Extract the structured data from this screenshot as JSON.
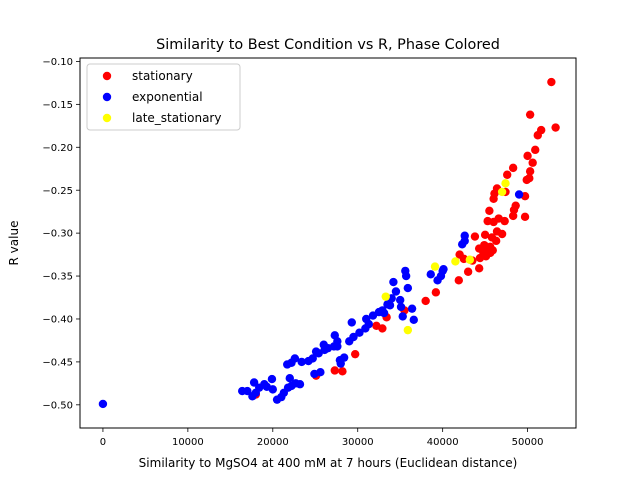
{
  "chart_data": {
    "type": "scatter",
    "title": "Similarity to Best Condition vs R, Phase Colored",
    "xlabel": "Similarity to MgSO4 at 400 mM at 7 hours (Euclidean distance)",
    "ylabel": "R value",
    "xlim": [
      -2700,
      55700
    ],
    "ylim": [
      -0.527,
      -0.096
    ],
    "x_ticks": [
      0,
      10000,
      20000,
      30000,
      40000,
      50000
    ],
    "x_tick_labels": [
      "0",
      "10000",
      "20000",
      "30000",
      "40000",
      "50000"
    ],
    "y_ticks": [
      -0.5,
      -0.45,
      -0.4,
      -0.35,
      -0.3,
      -0.25,
      -0.2,
      -0.15,
      -0.1
    ],
    "y_tick_labels": [
      "−0.50",
      "−0.45",
      "−0.40",
      "−0.35",
      "−0.30",
      "−0.25",
      "−0.20",
      "−0.15",
      "−0.10"
    ],
    "grid": false,
    "legend_position": "top-left",
    "series": [
      {
        "name": "stationary",
        "color": "#ff0000",
        "points": [
          [
            52800,
            -0.124
          ],
          [
            50300,
            -0.162
          ],
          [
            51600,
            -0.18
          ],
          [
            51200,
            -0.186
          ],
          [
            53300,
            -0.177
          ],
          [
            50900,
            -0.203
          ],
          [
            50000,
            -0.21
          ],
          [
            50600,
            -0.218
          ],
          [
            50300,
            -0.228
          ],
          [
            50200,
            -0.236
          ],
          [
            49900,
            -0.238
          ],
          [
            48300,
            -0.224
          ],
          [
            47600,
            -0.232
          ],
          [
            46400,
            -0.248
          ],
          [
            46100,
            -0.254
          ],
          [
            46000,
            -0.26
          ],
          [
            49700,
            -0.257
          ],
          [
            47400,
            -0.252
          ],
          [
            48600,
            -0.268
          ],
          [
            48400,
            -0.273
          ],
          [
            48300,
            -0.28
          ],
          [
            49700,
            -0.281
          ],
          [
            46600,
            -0.283
          ],
          [
            47300,
            -0.286
          ],
          [
            45300,
            -0.286
          ],
          [
            46000,
            -0.287
          ],
          [
            45500,
            -0.274
          ],
          [
            46400,
            -0.298
          ],
          [
            47000,
            -0.301
          ],
          [
            45800,
            -0.305
          ],
          [
            46300,
            -0.309
          ],
          [
            45000,
            -0.302
          ],
          [
            43800,
            -0.304
          ],
          [
            44900,
            -0.314
          ],
          [
            45600,
            -0.316
          ],
          [
            45900,
            -0.32
          ],
          [
            45300,
            -0.32
          ],
          [
            44300,
            -0.318
          ],
          [
            44800,
            -0.323
          ],
          [
            45600,
            -0.323
          ],
          [
            45100,
            -0.327
          ],
          [
            44400,
            -0.329
          ],
          [
            43500,
            -0.332
          ],
          [
            42500,
            -0.33
          ],
          [
            42000,
            -0.325
          ],
          [
            43000,
            -0.345
          ],
          [
            44300,
            -0.341
          ],
          [
            41900,
            -0.355
          ],
          [
            39200,
            -0.369
          ],
          [
            38000,
            -0.379
          ],
          [
            35500,
            -0.39
          ],
          [
            33400,
            -0.398
          ],
          [
            32200,
            -0.408
          ],
          [
            32900,
            -0.411
          ],
          [
            29700,
            -0.441
          ],
          [
            27300,
            -0.46
          ],
          [
            28200,
            -0.461
          ],
          [
            25100,
            -0.466
          ],
          [
            18000,
            -0.488
          ]
        ]
      },
      {
        "name": "exponential",
        "color": "#0000ff",
        "points": [
          [
            0,
            -0.499
          ],
          [
            16400,
            -0.484
          ],
          [
            17000,
            -0.484
          ],
          [
            17600,
            -0.49
          ],
          [
            18000,
            -0.486
          ],
          [
            18400,
            -0.48
          ],
          [
            17800,
            -0.474
          ],
          [
            19000,
            -0.476
          ],
          [
            19300,
            -0.479
          ],
          [
            20000,
            -0.482
          ],
          [
            20500,
            -0.494
          ],
          [
            21000,
            -0.491
          ],
          [
            21300,
            -0.486
          ],
          [
            21800,
            -0.48
          ],
          [
            22200,
            -0.478
          ],
          [
            22700,
            -0.475
          ],
          [
            23200,
            -0.476
          ],
          [
            22000,
            -0.469
          ],
          [
            19900,
            -0.47
          ],
          [
            21700,
            -0.453
          ],
          [
            22200,
            -0.451
          ],
          [
            22600,
            -0.446
          ],
          [
            23400,
            -0.45
          ],
          [
            24200,
            -0.449
          ],
          [
            24700,
            -0.446
          ],
          [
            25400,
            -0.44
          ],
          [
            25100,
            -0.438
          ],
          [
            26100,
            -0.436
          ],
          [
            26500,
            -0.434
          ],
          [
            26000,
            -0.43
          ],
          [
            27200,
            -0.432
          ],
          [
            27600,
            -0.432
          ],
          [
            27600,
            -0.426
          ],
          [
            27300,
            -0.419
          ],
          [
            27900,
            -0.448
          ],
          [
            28000,
            -0.452
          ],
          [
            28400,
            -0.445
          ],
          [
            29000,
            -0.426
          ],
          [
            29500,
            -0.421
          ],
          [
            29300,
            -0.404
          ],
          [
            30200,
            -0.416
          ],
          [
            30900,
            -0.411
          ],
          [
            31300,
            -0.406
          ],
          [
            31000,
            -0.4
          ],
          [
            31800,
            -0.396
          ],
          [
            32500,
            -0.392
          ],
          [
            33100,
            -0.393
          ],
          [
            32900,
            -0.39
          ],
          [
            33500,
            -0.383
          ],
          [
            33800,
            -0.384
          ],
          [
            34000,
            -0.376
          ],
          [
            34500,
            -0.368
          ],
          [
            35000,
            -0.378
          ],
          [
            35100,
            -0.386
          ],
          [
            35300,
            -0.397
          ],
          [
            35900,
            -0.364
          ],
          [
            35700,
            -0.35
          ],
          [
            35600,
            -0.344
          ],
          [
            34200,
            -0.357
          ],
          [
            36400,
            -0.388
          ],
          [
            36600,
            -0.401
          ],
          [
            39400,
            -0.355
          ],
          [
            39800,
            -0.35
          ],
          [
            40000,
            -0.344
          ],
          [
            40100,
            -0.342
          ],
          [
            38600,
            -0.348
          ],
          [
            42600,
            -0.303
          ],
          [
            42600,
            -0.309
          ],
          [
            42300,
            -0.313
          ],
          [
            24900,
            -0.464
          ],
          [
            25600,
            -0.462
          ],
          [
            49000,
            -0.255
          ]
        ]
      },
      {
        "name": "late_stationary",
        "color": "#ffff00",
        "points": [
          [
            47400,
            -0.242
          ],
          [
            47000,
            -0.252
          ],
          [
            41500,
            -0.333
          ],
          [
            39100,
            -0.339
          ],
          [
            33300,
            -0.374
          ],
          [
            35900,
            -0.413
          ],
          [
            43200,
            -0.331
          ]
        ]
      }
    ]
  }
}
